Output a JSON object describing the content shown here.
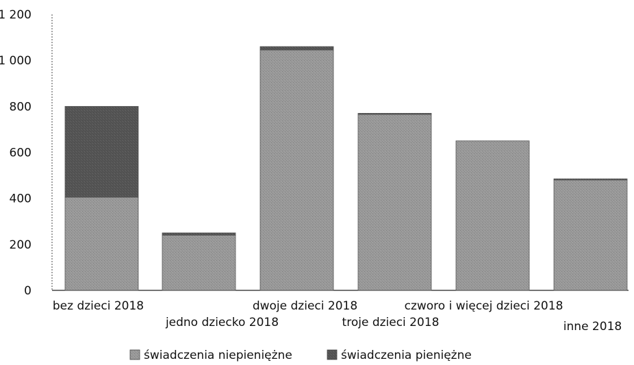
{
  "chart_data": {
    "type": "bar",
    "stacked": true,
    "categories": [
      "bez dzieci 2018",
      "jedno dziecko 2018",
      "dwoje dzieci 2018",
      "troje dzieci 2018",
      "czworo i więcej dzieci 2018",
      "inne 2018"
    ],
    "series": [
      {
        "name": "świadczenia niepieniężne",
        "values": [
          405,
          240,
          1045,
          765,
          650,
          480
        ],
        "color": "#9a9a9a"
      },
      {
        "name": "świadczenia pieniężne",
        "values": [
          395,
          10,
          15,
          5,
          0,
          5
        ],
        "color": "#555555"
      }
    ],
    "y_ticks": [
      "1 200",
      "1 000",
      "800",
      "600",
      "400",
      "200",
      "0"
    ],
    "y_tick_values": [
      1200,
      1000,
      800,
      600,
      400,
      200,
      0
    ],
    "ylim": [
      0,
      1200
    ],
    "grid": false,
    "legend_position": "bottom"
  }
}
